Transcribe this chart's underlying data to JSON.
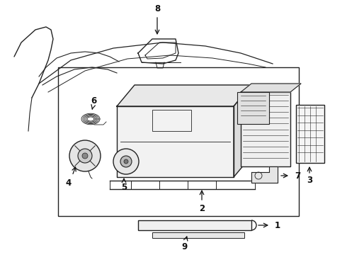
{
  "background_color": "#ffffff",
  "line_color": "#222222",
  "label_color": "#111111",
  "fig_width": 4.9,
  "fig_height": 3.6,
  "dpi": 100,
  "lw": 1.0
}
